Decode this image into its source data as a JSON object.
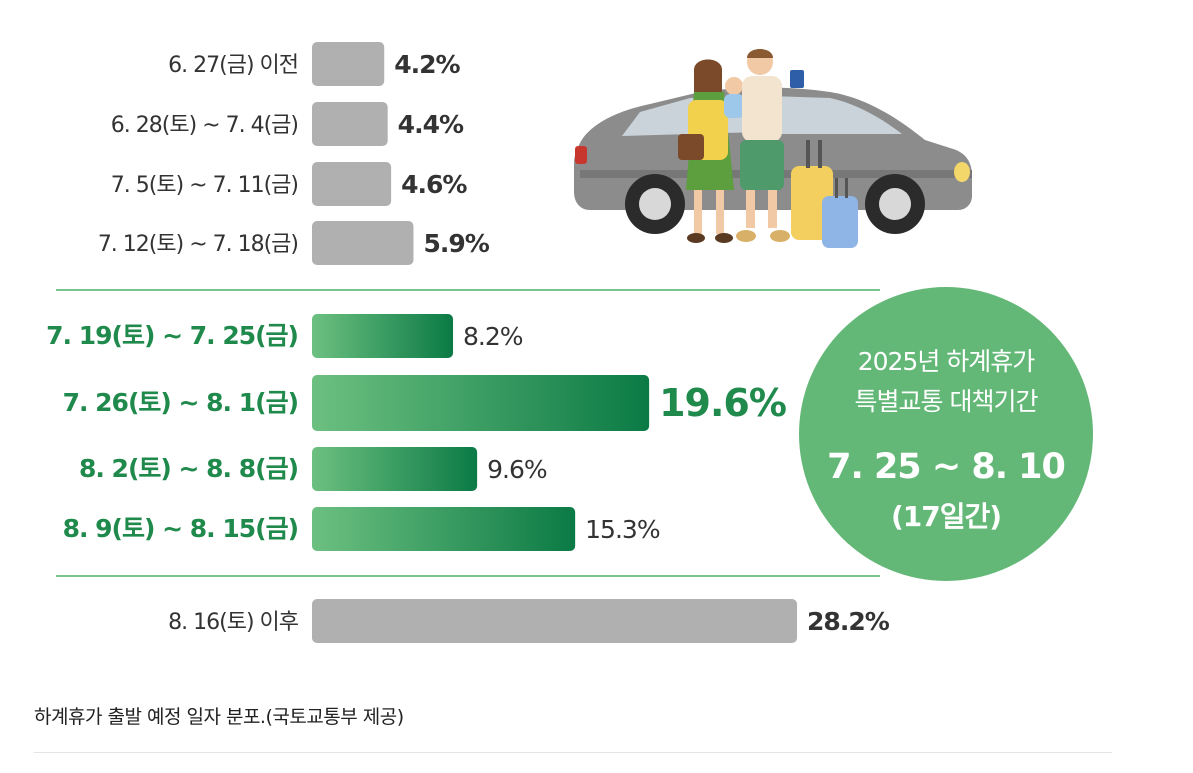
{
  "chart_data": {
    "type": "bar",
    "orientation": "horizontal",
    "unit": "%",
    "categories": [
      "6. 27(금) 이전",
      "6. 28(토) ~ 7. 4(금)",
      "7. 5(토) ~ 7. 11(금)",
      "7. 12(토) ~ 7. 18(금)",
      "7. 19(토) ~ 7. 25(금)",
      "7. 26(토) ~ 8. 1(금)",
      "8. 2(토) ~ 8. 8(금)",
      "8. 9(토) ~ 8. 15(금)",
      "8. 16(토) 이후"
    ],
    "values": [
      4.2,
      4.4,
      4.6,
      5.9,
      8.2,
      19.6,
      9.6,
      15.3,
      28.2
    ],
    "value_labels": [
      "4.2%",
      "4.4%",
      "4.6%",
      "5.9%",
      "8.2%",
      "19.6%",
      "9.6%",
      "15.3%",
      "28.2%"
    ],
    "highlighted": [
      false,
      false,
      false,
      false,
      true,
      true,
      true,
      true,
      false
    ],
    "max_value_label_index": 5,
    "xlim": [
      0,
      30
    ],
    "colors": {
      "normal_bar": "#b0b0b0",
      "highlight_bar_start": "#6cc080",
      "highlight_bar_end": "#0b7a45",
      "highlight_text": "#1f8a4c",
      "divider": "#7cc48e",
      "badge": "#64b877"
    }
  },
  "badge": {
    "line1": "2025년 하계휴가",
    "line2": "특별교통 대책기간",
    "period": "7. 25 ~ 8. 10",
    "days": "(17일간)"
  },
  "illustration": {
    "icon": "family-car-travel-illustration"
  },
  "caption": "하계휴가 출발 예정 일자 분포.(국토교통부 제공)"
}
